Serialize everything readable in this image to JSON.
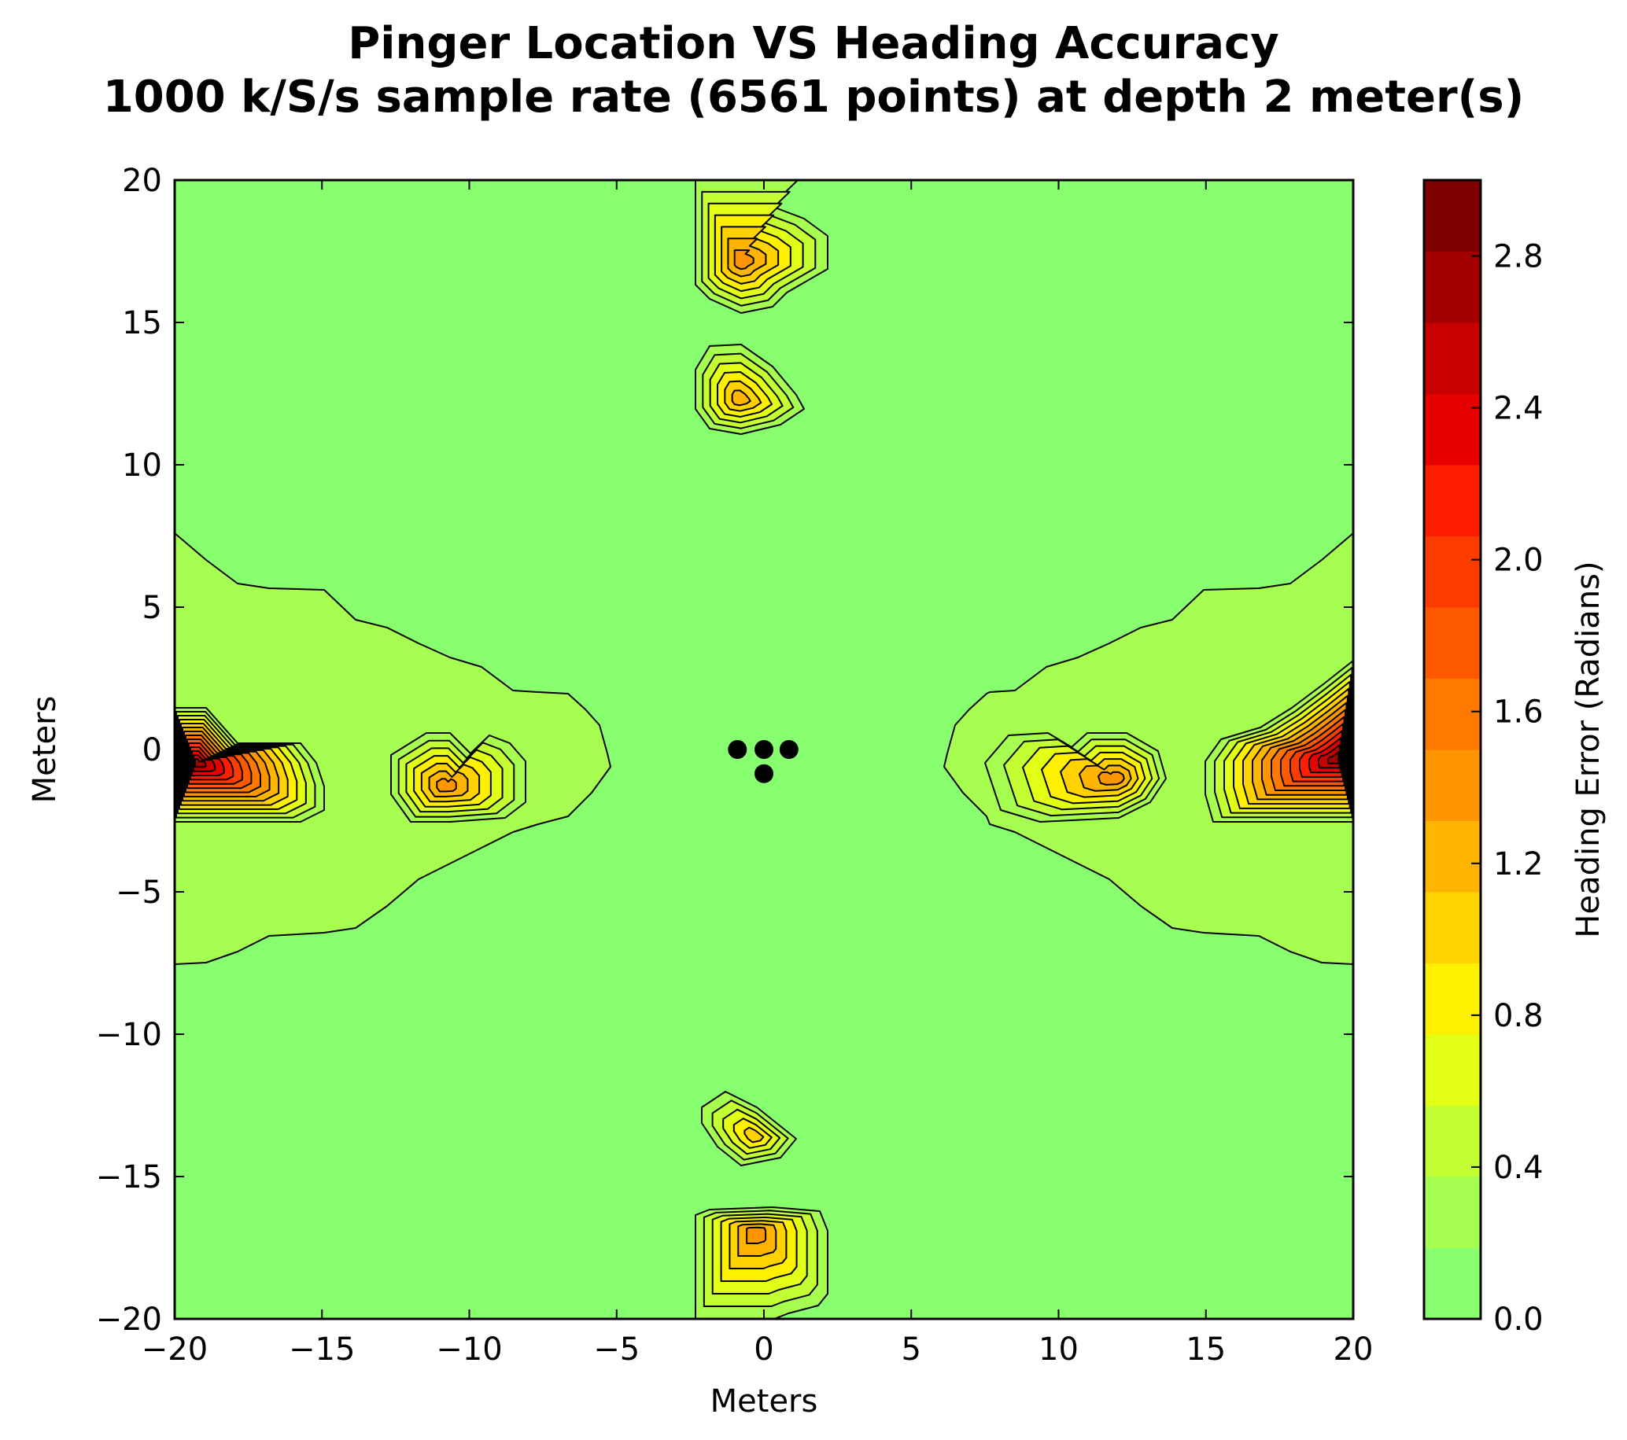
{
  "chart_data": {
    "type": "contour",
    "title": "Pinger Location VS Heading Accuracy",
    "subtitle": "1000 k/S/s sample rate (6561 points) at depth 2 meter(s)",
    "xlabel": "Meters",
    "ylabel": "Meters",
    "xlim": [
      -20,
      20
    ],
    "ylim": [
      -20,
      20
    ],
    "xticks": [
      "−20",
      "−15",
      "−10",
      "−5",
      "0",
      "5",
      "10",
      "15",
      "20"
    ],
    "xtick_values": [
      -20,
      -15,
      -10,
      -5,
      0,
      5,
      10,
      15,
      20
    ],
    "yticks": [
      "−20",
      "−15",
      "−10",
      "−5",
      "0",
      "5",
      "10",
      "15",
      "20"
    ],
    "ytick_values": [
      -20,
      -15,
      -10,
      -5,
      0,
      5,
      10,
      15,
      20
    ],
    "colorbar": {
      "label": "Heading Error (Radians)",
      "range": [
        0.0,
        3.0
      ],
      "tick_labels": [
        "0.0",
        "0.4",
        "0.8",
        "1.2",
        "1.6",
        "2.0",
        "2.4",
        "2.8"
      ],
      "tick_values": [
        0.0,
        0.4,
        0.8,
        1.2,
        1.6,
        2.0,
        2.4,
        2.8
      ],
      "level_colors": [
        "#88ff6e",
        "#a6ff50",
        "#c4ff33",
        "#e2ff16",
        "#fff000",
        "#ffd200",
        "#ffb400",
        "#ff9600",
        "#ff7800",
        "#ff5a00",
        "#ff3c00",
        "#ff1e00",
        "#e60000",
        "#c80000",
        "#a50000",
        "#800000"
      ]
    },
    "hydrophones": [
      {
        "x": -0.9,
        "y": 0.0
      },
      {
        "x": 0.0,
        "y": 0.0
      },
      {
        "x": 0.85,
        "y": 0.0
      },
      {
        "x": 0.0,
        "y": -0.85
      }
    ],
    "error_regions": [
      {
        "name": "left-wing",
        "x": [
          -20,
          -5
        ],
        "y": [
          -7.3,
          7.6
        ],
        "level": 0.3
      },
      {
        "name": "right-wing",
        "x": [
          4.3,
          20
        ],
        "y": [
          -7.3,
          7.6
        ],
        "level": 0.3
      },
      {
        "name": "left-peak",
        "x": -19,
        "y": -0.6,
        "peak": 2.9
      },
      {
        "name": "left-inner-peak",
        "x": -11,
        "y": -1.0,
        "peak": 1.3
      },
      {
        "name": "right-inner-peak",
        "x": 12.8,
        "y": -0.9,
        "peak": 1.4
      },
      {
        "name": "right-peak",
        "x": 19.5,
        "y": -0.3,
        "peak": 2.9
      },
      {
        "name": "top-peak",
        "x": 0.3,
        "y": 17,
        "peak": 1.3
      },
      {
        "name": "top-upper-peak",
        "x": -0.5,
        "y": 20,
        "peak": 1.0
      },
      {
        "name": "upper-mid-peak",
        "x": -0.6,
        "y": 12.3,
        "peak": 1.1
      },
      {
        "name": "lower-mid-peak",
        "x": -0.6,
        "y": -13.6,
        "peak": 0.9
      },
      {
        "name": "bottom-peak",
        "x": 0.0,
        "y": -17.2,
        "peak": 1.3
      }
    ]
  }
}
